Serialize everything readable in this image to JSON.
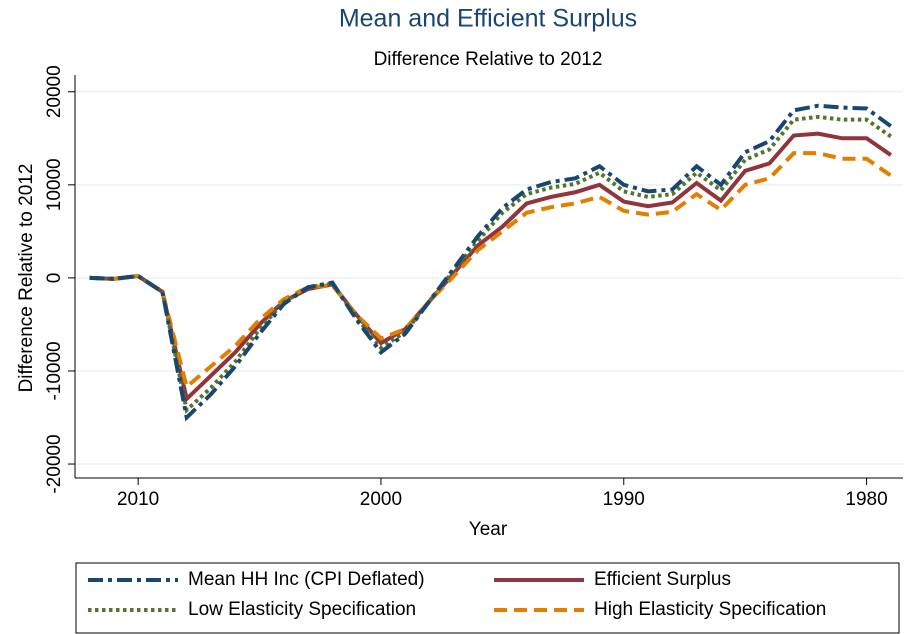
{
  "chart_data": {
    "type": "line",
    "title": "Mean and Efficient Surplus",
    "subtitle": "Difference Relative to 2012",
    "x_label": "Year",
    "y_label": "Difference Relative to 2012",
    "x": [
      2012,
      2011,
      2010,
      2009,
      2008,
      2007,
      2006,
      2005,
      2004,
      2003,
      2002,
      2001,
      2000,
      1999,
      1998,
      1997,
      1996,
      1995,
      1994,
      1993,
      1992,
      1991,
      1990,
      1989,
      1988,
      1987,
      1986,
      1985,
      1984,
      1983,
      1982,
      1981,
      1980,
      1979
    ],
    "xlim": [
      2012.6,
      1978.5
    ],
    "xticks": [
      2010,
      2000,
      1990,
      1980
    ],
    "ylim": [
      -21500,
      21800
    ],
    "yticks": [
      -20000,
      -10000,
      0,
      10000,
      20000
    ],
    "grid": true,
    "legend": "bottom",
    "series": [
      {
        "name": "Mean HH Inc (CPI Deflated)",
        "color": "#1a476f",
        "line_style": "dashdot",
        "values": [
          0,
          -100,
          200,
          -1500,
          -15000,
          -12500,
          -9500,
          -6000,
          -2800,
          -1000,
          -500,
          -4500,
          -8000,
          -6000,
          -2500,
          1000,
          4500,
          7500,
          9500,
          10300,
          10700,
          12000,
          10000,
          9300,
          9500,
          12000,
          10000,
          13500,
          14700,
          18000,
          18500,
          18300,
          18200,
          16300
        ]
      },
      {
        "name": "Efficient Surplus",
        "color": "#90353b",
        "line_style": "solid",
        "values": [
          0,
          -100,
          200,
          -1500,
          -13000,
          -10500,
          -8000,
          -5000,
          -2500,
          -1200,
          -700,
          -4000,
          -7000,
          -5500,
          -2500,
          500,
          3500,
          5500,
          8000,
          8700,
          9200,
          10000,
          8200,
          7700,
          8100,
          10200,
          8300,
          11500,
          12300,
          15300,
          15500,
          15000,
          15000,
          13200
        ]
      },
      {
        "name": "Low Elasticity Specification",
        "color": "#55752f",
        "line_style": "dotted",
        "values": [
          0,
          -100,
          200,
          -1500,
          -14200,
          -11800,
          -9000,
          -5500,
          -2600,
          -1000,
          -600,
          -4300,
          -7500,
          -5800,
          -2500,
          800,
          4000,
          7000,
          9000,
          9700,
          10100,
          11300,
          9300,
          8700,
          9000,
          11300,
          9400,
          12700,
          13800,
          17000,
          17300,
          17000,
          17000,
          15200
        ]
      },
      {
        "name": "High Elasticity Specification",
        "color": "#e37e00",
        "line_style": "dashed",
        "values": [
          0,
          -100,
          200,
          -1500,
          -11700,
          -9500,
          -7300,
          -4500,
          -2300,
          -1000,
          -800,
          -4000,
          -6500,
          -5500,
          -2500,
          200,
          3000,
          5000,
          7000,
          7600,
          8000,
          8700,
          7200,
          6800,
          7100,
          9000,
          7300,
          10000,
          10700,
          13400,
          13400,
          12800,
          12800,
          11000
        ]
      }
    ]
  }
}
